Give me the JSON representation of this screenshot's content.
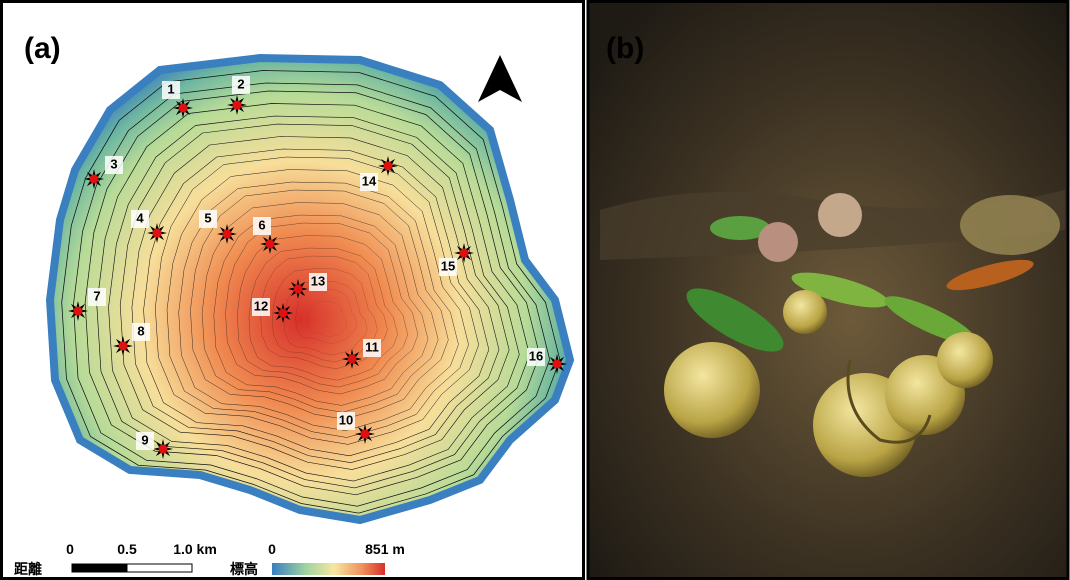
{
  "panels": {
    "a": {
      "label": "(a)"
    },
    "b": {
      "label": "(b)"
    }
  },
  "sites": [
    {
      "label": "1"
    },
    {
      "label": "2"
    },
    {
      "label": "3"
    },
    {
      "label": "4"
    },
    {
      "label": "5"
    },
    {
      "label": "6"
    },
    {
      "label": "7"
    },
    {
      "label": "8"
    },
    {
      "label": "9"
    },
    {
      "label": "10"
    },
    {
      "label": "11"
    },
    {
      "label": "12"
    },
    {
      "label": "13"
    },
    {
      "label": "14"
    },
    {
      "label": "15"
    },
    {
      "label": "16"
    }
  ],
  "scale_bar": {
    "title": "距離",
    "ticks": [
      "0",
      "0.5",
      "1.0 km"
    ]
  },
  "elevation_legend": {
    "title": "標高",
    "min": "0",
    "max": "851 m"
  }
}
